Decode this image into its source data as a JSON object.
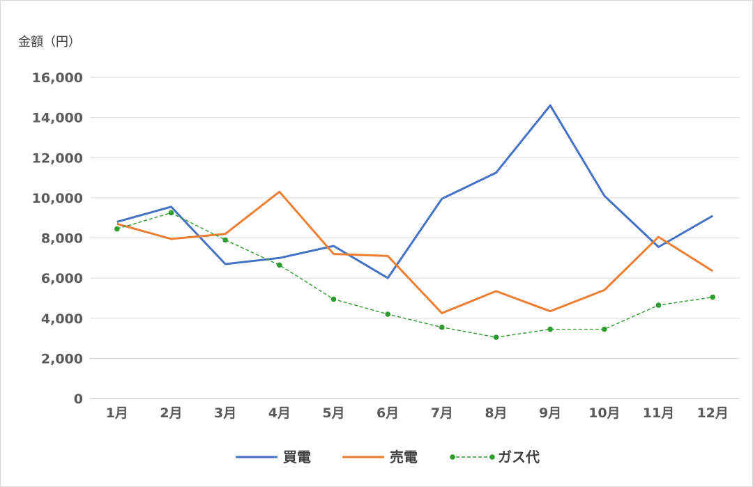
{
  "chart_data": {
    "type": "line",
    "ylabel": "金額（円）",
    "xlabel": "",
    "categories": [
      "1月",
      "2月",
      "3月",
      "4月",
      "5月",
      "6月",
      "7月",
      "8月",
      "9月",
      "10月",
      "11月",
      "12月"
    ],
    "ylim": [
      0,
      16000
    ],
    "yticks": [
      0,
      2000,
      4000,
      6000,
      8000,
      10000,
      12000,
      14000,
      16000
    ],
    "ytick_labels": [
      "0",
      "2,000",
      "4,000",
      "6,000",
      "8,000",
      "10,000",
      "12,000",
      "14,000",
      "16,000"
    ],
    "grid": "horizontal",
    "legend_position": "bottom",
    "series": [
      {
        "name": "買電",
        "color": "#4472C4",
        "style": "solid",
        "markers": false,
        "values": [
          8800,
          9550,
          6700,
          7000,
          7600,
          6000,
          9950,
          11250,
          14600,
          10100,
          7550,
          9100
        ]
      },
      {
        "name": "売電",
        "color": "#ED7D31",
        "style": "solid",
        "markers": false,
        "values": [
          8700,
          7950,
          8200,
          10300,
          7200,
          7100,
          4250,
          5350,
          4350,
          5400,
          8050,
          6350
        ]
      },
      {
        "name": "ガス代",
        "color": "#2E9B2E",
        "style": "dashed",
        "markers": true,
        "values": [
          8450,
          9250,
          7900,
          6650,
          4950,
          4200,
          3550,
          3050,
          3450,
          3450,
          4650,
          5050
        ]
      }
    ]
  }
}
